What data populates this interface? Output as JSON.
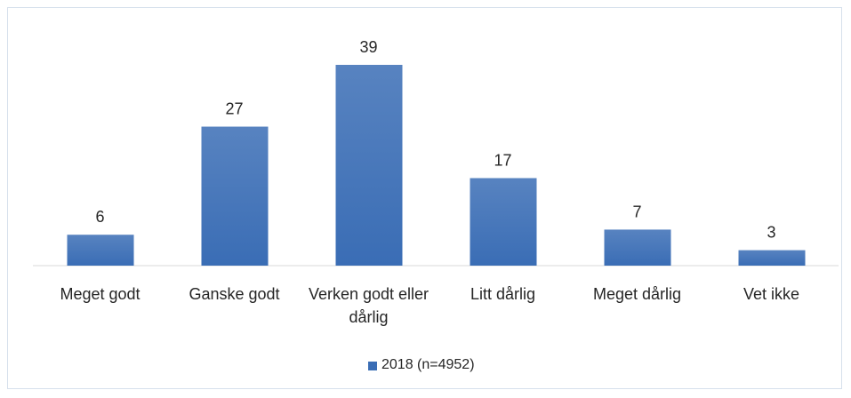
{
  "chart_data": {
    "type": "bar",
    "categories": [
      "Meget godt",
      "Ganske godt",
      "Verken godt eller dårlig",
      "Litt dårlig",
      "Meget dårlig",
      "Vet ikke"
    ],
    "series": [
      {
        "name": "2018 (n=4952)",
        "color": "#3a6db5",
        "values": [
          6,
          27,
          39,
          17,
          7,
          3
        ]
      }
    ]
  }
}
